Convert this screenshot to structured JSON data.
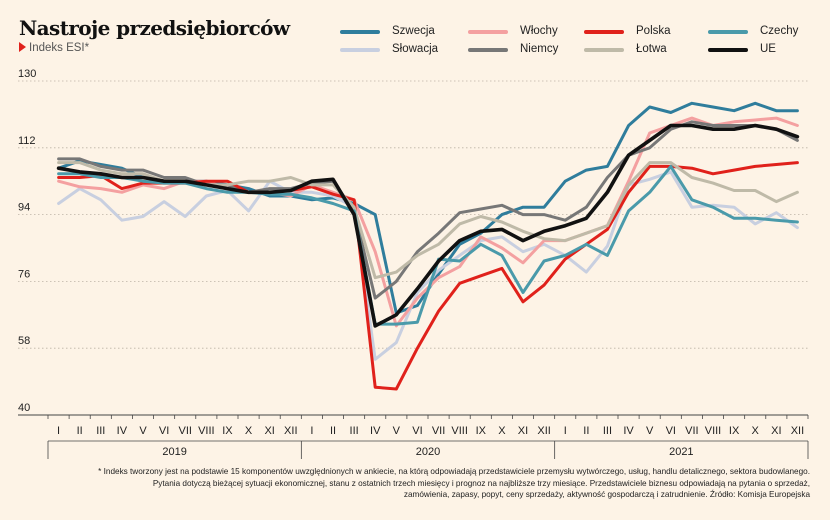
{
  "header": {
    "title": "Nastroje przedsiębiorców",
    "subtitle": "Indeks ESI*"
  },
  "chart_data": {
    "type": "line",
    "ylim": [
      40,
      130
    ],
    "yticks": [
      40,
      58,
      76,
      94,
      112,
      130
    ],
    "grid": true,
    "legend_position": "top",
    "x_month_labels": [
      "I",
      "II",
      "III",
      "IV",
      "V",
      "VI",
      "VII",
      "VIII",
      "IX",
      "X",
      "XI",
      "XII",
      "I",
      "II",
      "III",
      "IV",
      "V",
      "VI",
      "VII",
      "VIII",
      "IX",
      "X",
      "XI",
      "XII",
      "I",
      "II",
      "III",
      "IV",
      "V",
      "VI",
      "VII",
      "VIII",
      "IX",
      "X",
      "XI",
      "XII"
    ],
    "year_labels": [
      "2019",
      "2020",
      "2021"
    ],
    "series": [
      {
        "name": "Szwecja",
        "color": "#2f7d9c",
        "width": 3,
        "values": [
          106.5,
          108.5,
          107.5,
          106.5,
          104,
          103,
          103,
          103,
          102,
          101,
          99,
          99,
          98,
          98.5,
          97,
          94,
          67.5,
          69.5,
          78,
          86,
          89,
          94,
          96,
          96,
          103,
          106,
          107,
          118,
          123,
          121.5,
          124,
          123,
          122,
          124,
          122,
          122
        ]
      },
      {
        "name": "Słowacja",
        "color": "#c8cfe0",
        "width": 3,
        "values": [
          97,
          101,
          98,
          92.5,
          93.5,
          97.5,
          93.5,
          99,
          100.5,
          95,
          103,
          100,
          100,
          99,
          96,
          55,
          59.5,
          73,
          79,
          83,
          87,
          88,
          84,
          86,
          83,
          78.5,
          85.5,
          102,
          103.5,
          105.5,
          96,
          96.5,
          96,
          91.5,
          94.5,
          90.5
        ]
      },
      {
        "name": "Włochy",
        "color": "#f4a0a0",
        "width": 3,
        "values": [
          103,
          101.5,
          101,
          100,
          102,
          101,
          103,
          103,
          101,
          100,
          100,
          99,
          102,
          100,
          98,
          84,
          64,
          71.5,
          77,
          80,
          88,
          85,
          81,
          87,
          87,
          89,
          91,
          103,
          116,
          118,
          120,
          118,
          119,
          119.5,
          120,
          118
        ]
      },
      {
        "name": "Niemcy",
        "color": "#777777",
        "width": 3,
        "values": [
          109,
          109,
          107,
          106,
          106,
          104,
          104,
          102,
          102,
          100,
          101,
          101,
          102.5,
          103,
          95,
          71.5,
          76,
          84,
          89,
          94.5,
          95.5,
          96.5,
          94,
          94,
          92.5,
          96,
          104,
          110,
          112,
          117,
          119,
          118,
          118,
          118,
          117,
          114
        ]
      },
      {
        "name": "Polska",
        "color": "#e0211b",
        "width": 3,
        "values": [
          104,
          104,
          104.5,
          101,
          102.5,
          102.5,
          102.5,
          103,
          103,
          100,
          100,
          100.5,
          101.5,
          99.5,
          98,
          47.5,
          47,
          58,
          68,
          75.5,
          77.5,
          79.5,
          70.5,
          75,
          82,
          86,
          90,
          100,
          107,
          107,
          106.5,
          105,
          106,
          107,
          107.5,
          108
        ]
      },
      {
        "name": "Łotwa",
        "color": "#bfbaa8",
        "width": 3,
        "values": [
          108,
          108,
          106,
          105,
          105,
          103,
          103,
          102,
          102,
          103,
          103,
          104,
          102,
          102,
          96,
          77,
          78.5,
          83,
          86,
          91.5,
          93.5,
          92,
          89.5,
          87.5,
          87,
          89,
          91,
          102,
          108,
          108,
          104,
          102.5,
          100.5,
          100.5,
          97.5,
          100
        ]
      },
      {
        "name": "Czechy",
        "color": "#4a9aaa",
        "width": 3,
        "values": [
          105,
          105,
          104,
          104,
          103,
          102.5,
          102.5,
          101,
          100,
          100,
          99.5,
          99.5,
          98.5,
          97,
          95,
          64.5,
          64.5,
          65,
          82,
          81.5,
          86,
          83,
          73,
          81.5,
          83,
          86,
          83,
          95,
          100,
          107,
          98,
          96,
          93,
          93,
          92.5,
          92
        ]
      },
      {
        "name": "UE",
        "color": "#111111",
        "width": 3.6,
        "values": [
          106.5,
          105.5,
          105,
          104,
          104,
          103,
          103,
          102,
          101,
          100,
          100,
          100.5,
          103,
          103.5,
          94,
          64,
          67,
          74,
          81.5,
          87,
          89.5,
          90,
          87,
          89.5,
          91,
          93,
          100,
          110,
          114,
          118,
          118,
          117,
          117,
          118,
          117,
          115
        ]
      }
    ]
  },
  "footnote": {
    "text": "* Indeks tworzony jest na podstawie 15 komponentów uwzględnionych w ankiecie, na którą odpowiadają przedstawiciele przemysłu wytwórczego, usług, handlu detalicznego, sektora budowlanego.\nPytania dotyczą bieżącej sytuacji ekonomicznej, stanu z ostatnich trzech miesięcy i prognoz na najbliższe trzy miesiące. Przedstawiciele biznesu odpowiadają na pytania o sprzedaż,\nzamówienia, zapasy, popyt, ceny sprzedaży, aktywność gospodarczą i zatrudnienie. Źródło: Komisja Europejska"
  }
}
